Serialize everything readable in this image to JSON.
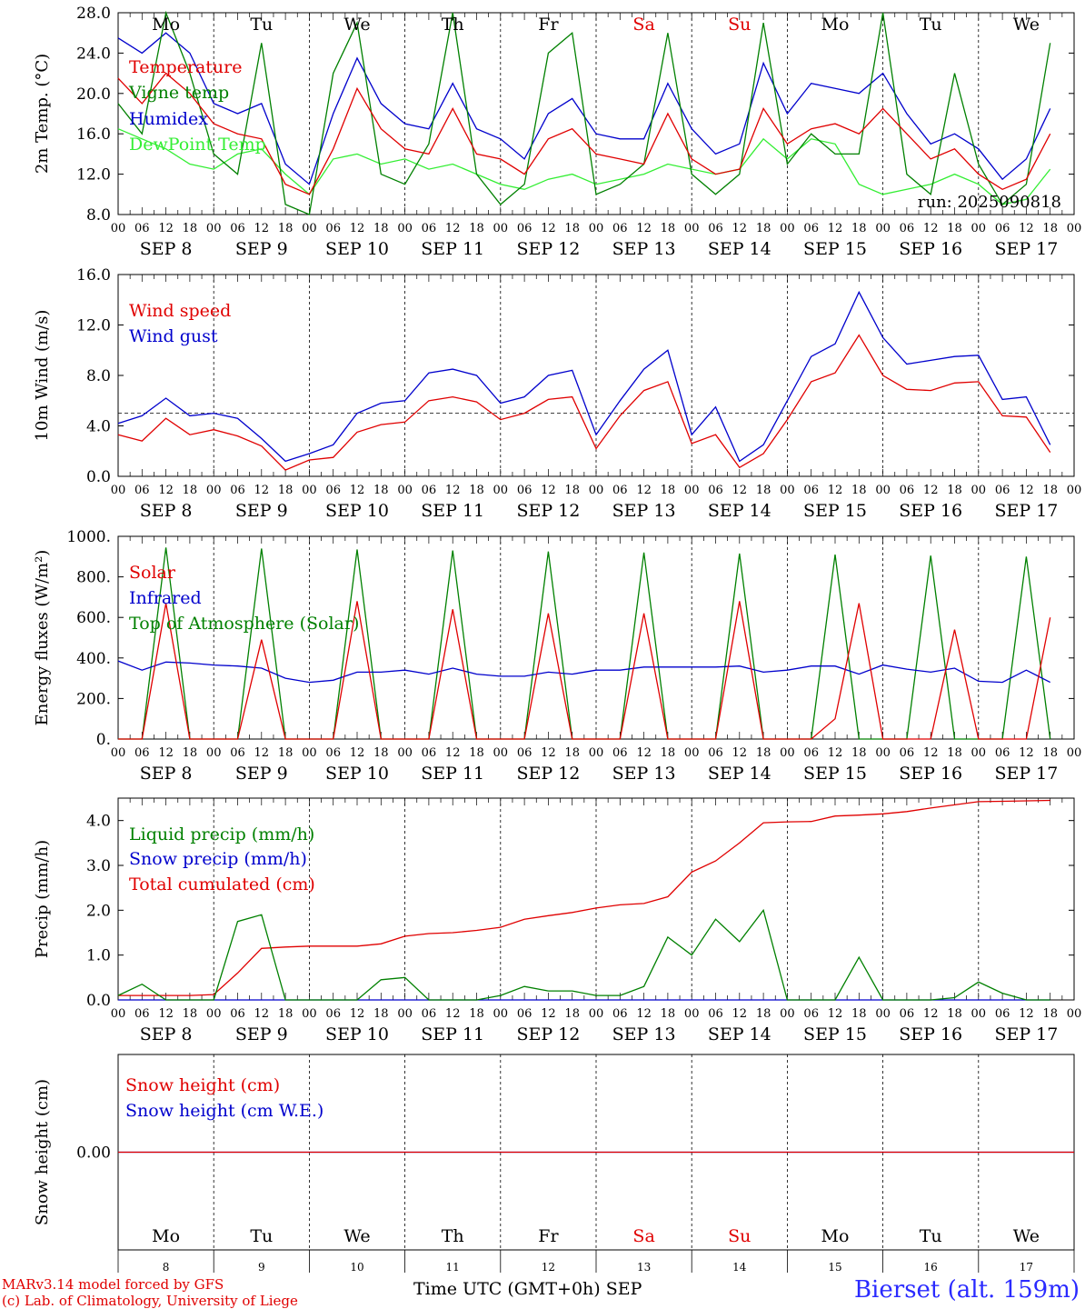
{
  "days": [
    "8",
    "9",
    "10",
    "11",
    "12",
    "13",
    "14",
    "15",
    "16",
    "17"
  ],
  "month": "SEP",
  "weekdays": [
    "Mo",
    "Tu",
    "We",
    "Th",
    "Fr",
    "Sa",
    "Su",
    "Mo",
    "Tu",
    "We"
  ],
  "weekday_colors": [
    "#000",
    "#000",
    "#000",
    "#000",
    "#000",
    "#e00000",
    "#e00000",
    "#000",
    "#000",
    "#000"
  ],
  "hour_ticks": [
    "00",
    "06",
    "12",
    "18"
  ],
  "run_label": "run: 2025090818",
  "footer": {
    "credit1": "MARv3.14 model forced by GFS",
    "credit2": "(c) Lab. of Climatology, University of Liege",
    "xlabel": "Time UTC (GMT+0h)",
    "xlabel_month": "SEP",
    "station": "Bierset (alt. 159m)"
  },
  "chart_data": [
    {
      "type": "line",
      "ylabel": "2m Temp. (°C)",
      "ylim": [
        8,
        28
      ],
      "yticks": [
        "8.0",
        "12.0",
        "16.0",
        "20.0",
        "24.0",
        "28.0"
      ],
      "x_unit": "hours since SEP 8 00 UTC",
      "series": [
        {
          "name": "Temperature",
          "color": "#e00000",
          "x": [
            0,
            6,
            12,
            18,
            24,
            30,
            36,
            42,
            48,
            54,
            60,
            66,
            72,
            78,
            84,
            90,
            96,
            102,
            108,
            114,
            120,
            126,
            132,
            138,
            144,
            150,
            156,
            162,
            168,
            174,
            180,
            186,
            192,
            198,
            204,
            210,
            216,
            222,
            228,
            234
          ],
          "values": [
            21.5,
            19,
            22,
            20,
            17,
            16,
            15.5,
            11,
            10,
            14.5,
            20.5,
            16.5,
            14.5,
            14,
            18.5,
            14,
            13.5,
            12,
            15.5,
            16.5,
            14,
            13.5,
            13,
            18,
            13.5,
            12,
            12.5,
            18.5,
            15,
            16.5,
            17,
            16,
            18.5,
            16,
            13.5,
            14.5,
            12,
            10.5,
            11.5,
            16
          ]
        },
        {
          "name": "Vigne temp",
          "color": "#008000",
          "x": [
            0,
            6,
            12,
            18,
            24,
            30,
            36,
            42,
            48,
            54,
            60,
            66,
            72,
            78,
            84,
            90,
            96,
            102,
            108,
            114,
            120,
            126,
            132,
            138,
            144,
            150,
            156,
            162,
            168,
            174,
            180,
            186,
            192,
            198,
            204,
            210,
            216,
            222,
            228,
            234
          ],
          "values": [
            19,
            16,
            28,
            22,
            14,
            12,
            25,
            9,
            8,
            22,
            27,
            12,
            11,
            15,
            28,
            12,
            9,
            11,
            24,
            26,
            10,
            11,
            13,
            26,
            12,
            10,
            12,
            27,
            13,
            16,
            14,
            14,
            28,
            12,
            10,
            22,
            13,
            9,
            11,
            25
          ]
        },
        {
          "name": "Humidex",
          "color": "#0000cc",
          "x": [
            0,
            6,
            12,
            18,
            24,
            30,
            36,
            42,
            48,
            54,
            60,
            66,
            72,
            78,
            84,
            90,
            96,
            102,
            108,
            114,
            120,
            126,
            132,
            138,
            144,
            150,
            156,
            162,
            168,
            174,
            180,
            186,
            192,
            198,
            204,
            210,
            216,
            222,
            228,
            234
          ],
          "values": [
            25.5,
            24,
            26,
            24,
            19,
            18,
            19,
            13,
            11,
            18,
            23.5,
            19,
            17,
            16.5,
            21,
            16.5,
            15.5,
            13.5,
            18,
            19.5,
            16,
            15.5,
            15.5,
            21,
            16.5,
            14,
            15,
            23,
            18,
            21,
            20.5,
            20,
            22,
            18,
            15,
            16,
            14.5,
            11.5,
            13.5,
            18.5
          ]
        },
        {
          "name": "DewPoint Temp",
          "color": "#33ee33",
          "x": [
            0,
            6,
            12,
            18,
            24,
            30,
            36,
            42,
            48,
            54,
            60,
            66,
            72,
            78,
            84,
            90,
            96,
            102,
            108,
            114,
            120,
            126,
            132,
            138,
            144,
            150,
            156,
            162,
            168,
            174,
            180,
            186,
            192,
            198,
            204,
            210,
            216,
            222,
            228,
            234
          ],
          "values": [
            16.5,
            15.5,
            14.5,
            13,
            12.5,
            14,
            14.5,
            12,
            10,
            13.5,
            14,
            13,
            13.5,
            12.5,
            13,
            12,
            11,
            10.5,
            11.5,
            12,
            11,
            11.5,
            12,
            13,
            12.5,
            12,
            12.5,
            15.5,
            13.5,
            15.5,
            15,
            11,
            10,
            10.5,
            11,
            12,
            11,
            9,
            9.5,
            12.5
          ]
        }
      ]
    },
    {
      "type": "line",
      "ylabel": "10m Wind (m/s)",
      "ylim": [
        0,
        16
      ],
      "yticks": [
        "0.0",
        "4.0",
        "8.0",
        "12.0",
        "16.0"
      ],
      "reference_line": 5,
      "series": [
        {
          "name": "Wind speed",
          "color": "#e00000",
          "x": [
            0,
            6,
            12,
            18,
            24,
            30,
            36,
            42,
            48,
            54,
            60,
            66,
            72,
            78,
            84,
            90,
            96,
            102,
            108,
            114,
            120,
            126,
            132,
            138,
            144,
            150,
            156,
            162,
            168,
            174,
            180,
            186,
            192,
            198,
            204,
            210,
            216,
            222,
            228,
            234
          ],
          "values": [
            3.3,
            2.8,
            4.6,
            3.3,
            3.7,
            3.2,
            2.4,
            0.5,
            1.3,
            1.5,
            3.5,
            4.1,
            4.3,
            6.0,
            6.3,
            5.9,
            4.5,
            5.0,
            6.1,
            6.3,
            2.2,
            4.8,
            6.8,
            7.5,
            2.6,
            3.3,
            0.7,
            1.8,
            4.5,
            7.5,
            8.2,
            11.2,
            8.0,
            6.9,
            6.8,
            7.4,
            7.5,
            4.8,
            4.7,
            1.9
          ]
        },
        {
          "name": "Wind gust",
          "color": "#0000cc",
          "x": [
            0,
            6,
            12,
            18,
            24,
            30,
            36,
            42,
            48,
            54,
            60,
            66,
            72,
            78,
            84,
            90,
            96,
            102,
            108,
            114,
            120,
            126,
            132,
            138,
            144,
            150,
            156,
            162,
            168,
            174,
            180,
            186,
            192,
            198,
            204,
            210,
            216,
            222,
            228,
            234
          ],
          "values": [
            4.2,
            4.8,
            6.2,
            4.8,
            5.0,
            4.6,
            3.0,
            1.2,
            1.8,
            2.5,
            5.0,
            5.8,
            6.0,
            8.2,
            8.5,
            8.0,
            5.8,
            6.3,
            8.0,
            8.4,
            3.3,
            6.0,
            8.5,
            10.0,
            3.3,
            5.5,
            1.2,
            2.5,
            6.0,
            9.5,
            10.5,
            14.6,
            11.0,
            8.9,
            9.2,
            9.5,
            9.6,
            6.1,
            6.3,
            2.5
          ]
        }
      ]
    },
    {
      "type": "line",
      "ylabel": "Energy fluxes (W/m²)",
      "ylim": [
        0,
        1000
      ],
      "yticks": [
        "0.",
        "200.",
        "400.",
        "600.",
        "800.",
        "1000."
      ],
      "series": [
        {
          "name": "Solar",
          "color": "#e00000",
          "x": [
            0,
            6,
            12,
            18,
            24,
            30,
            36,
            42,
            48,
            54,
            60,
            66,
            72,
            78,
            84,
            90,
            96,
            102,
            108,
            114,
            120,
            126,
            132,
            138,
            144,
            150,
            156,
            162,
            168,
            174,
            180,
            186,
            192,
            198,
            204,
            210,
            216,
            222,
            228,
            234
          ],
          "values": [
            0,
            0,
            670,
            0,
            0,
            0,
            490,
            0,
            0,
            0,
            680,
            0,
            0,
            0,
            640,
            0,
            0,
            0,
            620,
            0,
            0,
            0,
            620,
            0,
            0,
            0,
            680,
            0,
            0,
            0,
            100,
            670,
            0,
            0,
            0,
            540,
            0,
            0,
            0,
            600
          ]
        },
        {
          "name": "Infrared",
          "color": "#0000cc",
          "x": [
            0,
            6,
            12,
            18,
            24,
            30,
            36,
            42,
            48,
            54,
            60,
            66,
            72,
            78,
            84,
            90,
            96,
            102,
            108,
            114,
            120,
            126,
            132,
            138,
            144,
            150,
            156,
            162,
            168,
            174,
            180,
            186,
            192,
            198,
            204,
            210,
            216,
            222,
            228,
            234
          ],
          "values": [
            385,
            340,
            380,
            375,
            365,
            360,
            350,
            300,
            280,
            290,
            330,
            330,
            340,
            320,
            350,
            320,
            310,
            310,
            330,
            320,
            340,
            340,
            355,
            355,
            355,
            355,
            360,
            330,
            340,
            360,
            360,
            320,
            365,
            345,
            330,
            350,
            285,
            280,
            340,
            280
          ]
        },
        {
          "name": "Top of Atmosphere (Solar)",
          "color": "#008000",
          "x": [
            0,
            6,
            12,
            18,
            24,
            30,
            36,
            42,
            48,
            54,
            60,
            66,
            72,
            78,
            84,
            90,
            96,
            102,
            108,
            114,
            120,
            126,
            132,
            138,
            144,
            150,
            156,
            162,
            168,
            174,
            180,
            186,
            192,
            198,
            204,
            210,
            216,
            222,
            228,
            234
          ],
          "values": [
            0,
            0,
            945,
            0,
            0,
            0,
            940,
            0,
            0,
            0,
            935,
            0,
            0,
            0,
            930,
            0,
            0,
            0,
            925,
            0,
            0,
            0,
            920,
            0,
            0,
            0,
            915,
            0,
            0,
            0,
            910,
            0,
            0,
            0,
            905,
            0,
            0,
            0,
            900,
            0
          ]
        }
      ]
    },
    {
      "type": "line",
      "ylabel": "Precip (mm/h)",
      "ylim": [
        0,
        4.5
      ],
      "yticks": [
        "0.0",
        "1.0",
        "2.0",
        "3.0",
        "4.0"
      ],
      "series": [
        {
          "name": "Liquid precip (mm/h)",
          "color": "#008000",
          "x": [
            0,
            6,
            12,
            18,
            24,
            30,
            36,
            42,
            48,
            54,
            60,
            66,
            72,
            78,
            84,
            90,
            96,
            102,
            108,
            114,
            120,
            126,
            132,
            138,
            144,
            150,
            156,
            162,
            168,
            174,
            180,
            186,
            192,
            198,
            204,
            210,
            216,
            222,
            228,
            234
          ],
          "values": [
            0.1,
            0.35,
            0,
            0,
            0,
            1.75,
            1.9,
            0,
            0,
            0,
            0,
            0.45,
            0.5,
            0,
            0,
            0,
            0.1,
            0.3,
            0.2,
            0.2,
            0.1,
            0.1,
            0.3,
            1.4,
            1.0,
            1.8,
            1.3,
            2.0,
            0,
            0,
            0,
            0.95,
            0,
            0,
            0,
            0.05,
            0.4,
            0.15,
            0,
            0
          ]
        },
        {
          "name": "Snow precip (mm/h)",
          "color": "#0000cc",
          "x": [
            0,
            234
          ],
          "values": [
            0,
            0
          ]
        },
        {
          "name": "Total cumulated (cm)",
          "color": "#e00000",
          "x": [
            0,
            6,
            12,
            18,
            24,
            30,
            36,
            42,
            48,
            54,
            60,
            66,
            72,
            78,
            84,
            90,
            96,
            102,
            108,
            114,
            120,
            126,
            132,
            138,
            144,
            150,
            156,
            162,
            168,
            174,
            180,
            186,
            192,
            198,
            204,
            210,
            216,
            222,
            228,
            234
          ],
          "values": [
            0.1,
            0.1,
            0.1,
            0.1,
            0.12,
            0.6,
            1.15,
            1.18,
            1.2,
            1.2,
            1.2,
            1.25,
            1.42,
            1.48,
            1.5,
            1.55,
            1.62,
            1.8,
            1.88,
            1.95,
            2.05,
            2.12,
            2.15,
            2.3,
            2.85,
            3.1,
            3.5,
            3.95,
            3.97,
            3.98,
            4.1,
            4.12,
            4.15,
            4.2,
            4.28,
            4.35,
            4.42,
            4.43,
            4.44,
            4.45
          ]
        }
      ]
    },
    {
      "type": "line",
      "ylabel": "Snow height (cm)",
      "ylim": [
        -1,
        1
      ],
      "yticks": [
        "0.00"
      ],
      "series": [
        {
          "name": "Snow height (cm)",
          "color": "#e00000",
          "x": [
            0,
            240
          ],
          "values": [
            0,
            0
          ]
        },
        {
          "name": "Snow height (cm W.E.)",
          "color": "#0000cc",
          "x": [
            0,
            240
          ],
          "values": [
            0,
            0
          ]
        }
      ]
    }
  ]
}
